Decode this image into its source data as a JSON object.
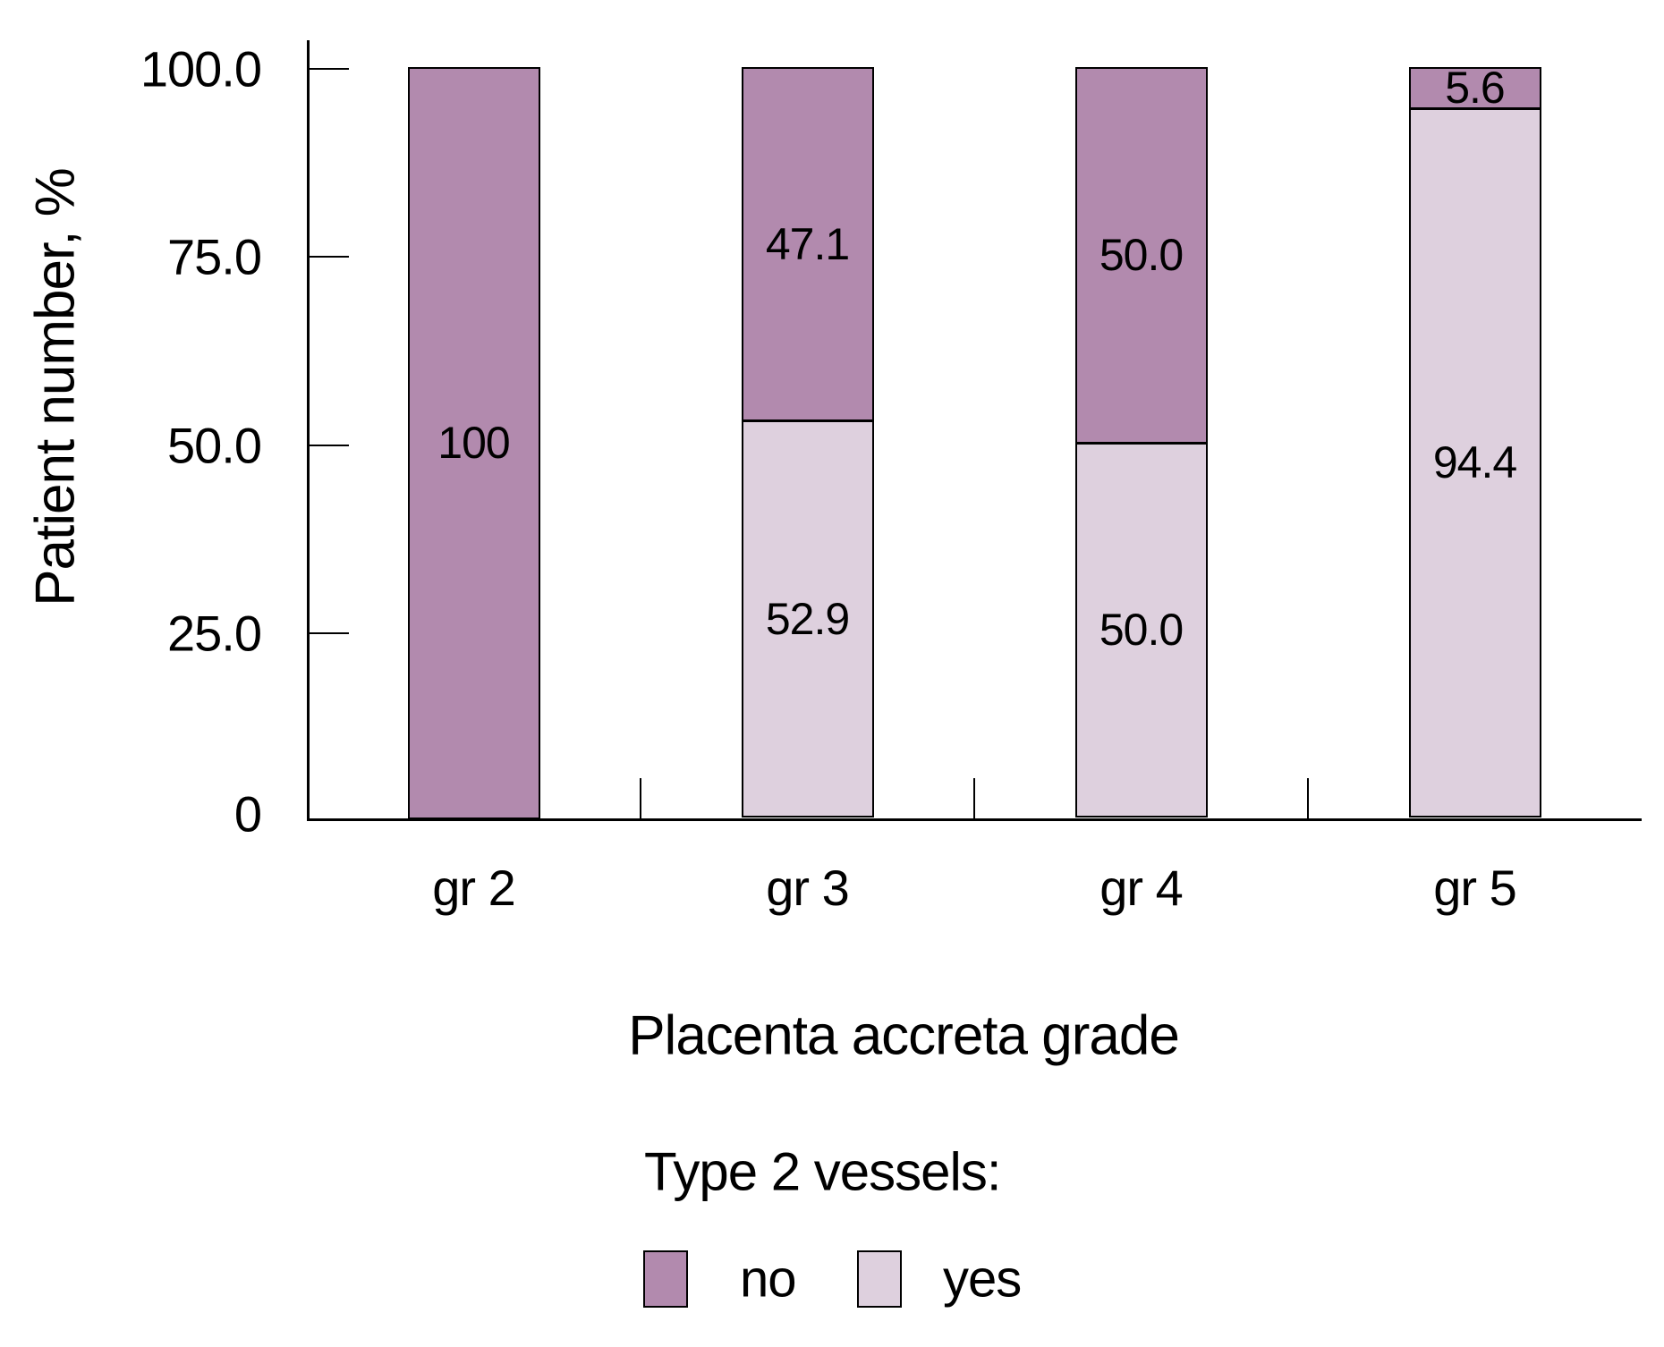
{
  "figure": {
    "y_axis_title": "Patient number, %",
    "x_axis_title": "Placenta accreta grade"
  },
  "legend": {
    "title": "Type 2 vessels:",
    "items": [
      {
        "label": "no",
        "series": "no"
      },
      {
        "label": "yes",
        "series": "yes"
      }
    ]
  },
  "chart_data": {
    "type": "bar",
    "stacked": true,
    "orientation": "vertical",
    "title": "",
    "xlabel": "Placenta accreta grade",
    "ylabel": "Patient number, %",
    "ylim": [
      0,
      100
    ],
    "grid": false,
    "legend_title": "Type 2 vessels:",
    "legend_position": "bottom",
    "categories": [
      "gr 2",
      "gr 3",
      "gr 4",
      "gr 5"
    ],
    "series": [
      {
        "name": "no",
        "color": "#b28aae",
        "values": [
          100,
          47.1,
          50.0,
          5.6
        ]
      },
      {
        "name": "yes",
        "color": "#ded0de",
        "values": [
          0,
          52.9,
          50.0,
          94.4
        ]
      }
    ],
    "y_axis": {
      "ticks": [
        {
          "label": "100.0",
          "value": 100
        },
        {
          "label": "75.0",
          "value": 75
        },
        {
          "label": "50.0",
          "value": 50
        },
        {
          "label": "25.0",
          "value": 25
        },
        {
          "label": "0",
          "value": 0
        }
      ]
    },
    "bars": [
      {
        "category": "gr 2",
        "segments": [
          {
            "series": "no",
            "value": 100,
            "label": "100"
          }
        ]
      },
      {
        "category": "gr 3",
        "segments": [
          {
            "series": "no",
            "value": 47.1,
            "label": "47.1"
          },
          {
            "series": "yes",
            "value": 52.9,
            "label": "52.9"
          }
        ]
      },
      {
        "category": "gr 4",
        "segments": [
          {
            "series": "no",
            "value": 50.0,
            "label": "50.0"
          },
          {
            "series": "yes",
            "value": 50.0,
            "label": "50.0"
          }
        ]
      },
      {
        "category": "gr 5",
        "segments": [
          {
            "series": "no",
            "value": 5.6,
            "label": "5.6"
          },
          {
            "series": "yes",
            "value": 94.4,
            "label": "94.4"
          }
        ]
      }
    ],
    "colors": {
      "no": "#b28aae",
      "yes": "#ded0de",
      "axis": "#000000",
      "text": "#000000"
    }
  }
}
